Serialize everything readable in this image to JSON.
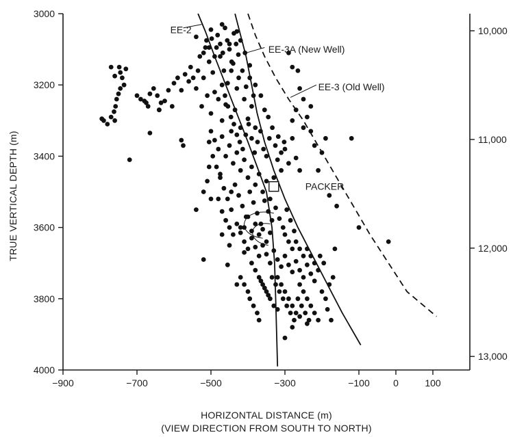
{
  "chart_data": {
    "type": "scatter",
    "title": "",
    "xlabel": "HORIZONTAL DISTANCE (m)",
    "xlabel_line2": "(VIEW DIRECTION FROM SOUTH TO NORTH)",
    "ylabel": "TRUE VERTICAL DEPTH (m)",
    "xlim": [
      -900,
      200
    ],
    "ylim": [
      3000,
      4000
    ],
    "x_ticks": [
      -900,
      -700,
      -500,
      -300,
      -100,
      0,
      100
    ],
    "x_tick_labels": [
      "−900",
      "−700",
      "−500",
      "−300",
      "−100",
      "0",
      "100"
    ],
    "y_ticks": [
      3000,
      3200,
      3400,
      3600,
      3800,
      4000
    ],
    "y_tick_labels": [
      "3000",
      "3200",
      "3400",
      "3600",
      "3800",
      "4000"
    ],
    "y2_ticks_m": [
      3048,
      3353,
      3658,
      3962
    ],
    "y2_tick_labels": [
      "10,000",
      "11,000",
      "12,000",
      "13,000"
    ],
    "grid": false,
    "wells": [
      {
        "name": "EE-2",
        "style": "solid",
        "x": [
          -535,
          -515,
          -490,
          -460,
          -430,
          -400,
          -375,
          -350,
          -335,
          -328,
          -325,
          -320
        ],
        "y": [
          3000,
          3050,
          3120,
          3200,
          3280,
          3360,
          3430,
          3500,
          3600,
          3700,
          3800,
          3990
        ]
      },
      {
        "name": "EE-3A (New Well)",
        "style": "solid",
        "x": [
          -435,
          -420,
          -405,
          -390,
          -375,
          -355,
          -330,
          -300,
          -265,
          -225,
          -185,
          -145,
          -95
        ],
        "y": [
          3000,
          3060,
          3120,
          3200,
          3280,
          3360,
          3440,
          3520,
          3600,
          3680,
          3760,
          3840,
          3930
        ]
      },
      {
        "name": "EE-3 (Old Well)",
        "style": "dashed",
        "x": [
          -400,
          -380,
          -355,
          -325,
          -290,
          -250,
          -205,
          -160,
          -115,
          -70,
          -20,
          30,
          110
        ],
        "y": [
          3000,
          3060,
          3120,
          3180,
          3240,
          3300,
          3380,
          3460,
          3540,
          3620,
          3700,
          3780,
          3850
        ]
      }
    ],
    "annotations": [
      {
        "text": "EE-2",
        "x": -610,
        "y": 3045
      },
      {
        "text": "EE-3A (New Well)",
        "x": -345,
        "y": 3100
      },
      {
        "text": "EE-3 (Old Well)",
        "x": -210,
        "y": 3205
      },
      {
        "text": "PACKER",
        "x": -245,
        "y": 3485
      }
    ],
    "packer": {
      "x": -330,
      "y": 3485
    },
    "points": [
      [
        -730,
        3155
      ],
      [
        -770,
        3150
      ],
      [
        -760,
        3175
      ],
      [
        -748,
        3150
      ],
      [
        -745,
        3165
      ],
      [
        -740,
        3180
      ],
      [
        -735,
        3200
      ],
      [
        -745,
        3210
      ],
      [
        -750,
        3225
      ],
      [
        -755,
        3240
      ],
      [
        -758,
        3260
      ],
      [
        -762,
        3275
      ],
      [
        -770,
        3290
      ],
      [
        -760,
        3300
      ],
      [
        -780,
        3310
      ],
      [
        -790,
        3300
      ],
      [
        -720,
        3410
      ],
      [
        -795,
        3295
      ],
      [
        -700,
        3230
      ],
      [
        -690,
        3240
      ],
      [
        -680,
        3245
      ],
      [
        -675,
        3250
      ],
      [
        -665,
        3225
      ],
      [
        -670,
        3260
      ],
      [
        -655,
        3210
      ],
      [
        -645,
        3230
      ],
      [
        -640,
        3270
      ],
      [
        -635,
        3250
      ],
      [
        -625,
        3245
      ],
      [
        -615,
        3215
      ],
      [
        -605,
        3260
      ],
      [
        -600,
        3195
      ],
      [
        -590,
        3180
      ],
      [
        -580,
        3215
      ],
      [
        -570,
        3170
      ],
      [
        -560,
        3190
      ],
      [
        -665,
        3335
      ],
      [
        -580,
        3355
      ],
      [
        -575,
        3370
      ],
      [
        -640,
        3270
      ],
      [
        -555,
        3150
      ],
      [
        -548,
        3180
      ],
      [
        -540,
        3210
      ],
      [
        -535,
        3160
      ],
      [
        -530,
        3120
      ],
      [
        -525,
        3260
      ],
      [
        -520,
        3180
      ],
      [
        -515,
        3095
      ],
      [
        -510,
        3230
      ],
      [
        -505,
        3135
      ],
      [
        -500,
        3280
      ],
      [
        -495,
        3165
      ],
      [
        -490,
        3220
      ],
      [
        -485,
        3095
      ],
      [
        -480,
        3240
      ],
      [
        -475,
        3120
      ],
      [
        -470,
        3300
      ],
      [
        -465,
        3160
      ],
      [
        -460,
        3255
      ],
      [
        -455,
        3195
      ],
      [
        -450,
        3085
      ],
      [
        -445,
        3330
      ],
      [
        -440,
        3140
      ],
      [
        -435,
        3270
      ],
      [
        -430,
        3210
      ],
      [
        -425,
        3180
      ],
      [
        -420,
        3320
      ],
      [
        -415,
        3160
      ],
      [
        -410,
        3240
      ],
      [
        -405,
        3205
      ],
      [
        -400,
        3295
      ],
      [
        -395,
        3180
      ],
      [
        -390,
        3260
      ],
      [
        -385,
        3230
      ],
      [
        -380,
        3320
      ],
      [
        -520,
        3110
      ],
      [
        -512,
        3075
      ],
      [
        -505,
        3095
      ],
      [
        -498,
        3070
      ],
      [
        -490,
        3120
      ],
      [
        -482,
        3060
      ],
      [
        -475,
        3085
      ],
      [
        -468,
        3110
      ],
      [
        -462,
        3040
      ],
      [
        -456,
        3075
      ],
      [
        -450,
        3100
      ],
      [
        -444,
        3135
      ],
      [
        -438,
        3055
      ],
      [
        -432,
        3085
      ],
      [
        -426,
        3115
      ],
      [
        -540,
        3065
      ],
      [
        -500,
        3045
      ],
      [
        -470,
        3030
      ],
      [
        -430,
        3050
      ],
      [
        -445,
        3160
      ],
      [
        -420,
        3075
      ],
      [
        -408,
        3110
      ],
      [
        -395,
        3145
      ],
      [
        -380,
        3200
      ],
      [
        -365,
        3230
      ],
      [
        -355,
        3270
      ],
      [
        -345,
        3290
      ],
      [
        -500,
        3330
      ],
      [
        -490,
        3355
      ],
      [
        -480,
        3380
      ],
      [
        -470,
        3345
      ],
      [
        -460,
        3400
      ],
      [
        -450,
        3370
      ],
      [
        -440,
        3420
      ],
      [
        -430,
        3390
      ],
      [
        -420,
        3440
      ],
      [
        -410,
        3410
      ],
      [
        -400,
        3460
      ],
      [
        -390,
        3430
      ],
      [
        -380,
        3480
      ],
      [
        -370,
        3450
      ],
      [
        -360,
        3500
      ],
      [
        -350,
        3470
      ],
      [
        -340,
        3520
      ],
      [
        -330,
        3460
      ],
      [
        -320,
        3410
      ],
      [
        -310,
        3440
      ],
      [
        -300,
        3380
      ],
      [
        -290,
        3420
      ],
      [
        -280,
        3350
      ],
      [
        -270,
        3405
      ],
      [
        -260,
        3440
      ],
      [
        -505,
        3360
      ],
      [
        -495,
        3400
      ],
      [
        -485,
        3430
      ],
      [
        -475,
        3460
      ],
      [
        -465,
        3490
      ],
      [
        -455,
        3520
      ],
      [
        -445,
        3550
      ],
      [
        -435,
        3480
      ],
      [
        -425,
        3510
      ],
      [
        -415,
        3540
      ],
      [
        -405,
        3570
      ],
      [
        -395,
        3500
      ],
      [
        -385,
        3530
      ],
      [
        -375,
        3560
      ],
      [
        -365,
        3590
      ],
      [
        -355,
        3525
      ],
      [
        -345,
        3555
      ],
      [
        -335,
        3580
      ],
      [
        -325,
        3545
      ],
      [
        -315,
        3575
      ],
      [
        -305,
        3600
      ],
      [
        -295,
        3550
      ],
      [
        -285,
        3580
      ],
      [
        -275,
        3610
      ],
      [
        -470,
        3200
      ],
      [
        -462,
        3230
      ],
      [
        -454,
        3260
      ],
      [
        -446,
        3290
      ],
      [
        -438,
        3310
      ],
      [
        -430,
        3340
      ],
      [
        -422,
        3360
      ],
      [
        -414,
        3380
      ],
      [
        -406,
        3340
      ],
      [
        -398,
        3310
      ],
      [
        -390,
        3350
      ],
      [
        -382,
        3390
      ],
      [
        -374,
        3360
      ],
      [
        -366,
        3330
      ],
      [
        -358,
        3380
      ],
      [
        -350,
        3400
      ],
      [
        -342,
        3350
      ],
      [
        -334,
        3320
      ],
      [
        -326,
        3370
      ],
      [
        -318,
        3345
      ],
      [
        -310,
        3390
      ],
      [
        -302,
        3360
      ],
      [
        -480,
        3520
      ],
      [
        -470,
        3555
      ],
      [
        -460,
        3580
      ],
      [
        -450,
        3600
      ],
      [
        -440,
        3620
      ],
      [
        -430,
        3590
      ],
      [
        -420,
        3615
      ],
      [
        -410,
        3640
      ],
      [
        -400,
        3660
      ],
      [
        -390,
        3630
      ],
      [
        -380,
        3655
      ],
      [
        -370,
        3680
      ],
      [
        -360,
        3650
      ],
      [
        -350,
        3675
      ],
      [
        -340,
        3700
      ],
      [
        -330,
        3665
      ],
      [
        -320,
        3690
      ],
      [
        -310,
        3710
      ],
      [
        -300,
        3680
      ],
      [
        -290,
        3705
      ],
      [
        -280,
        3725
      ],
      [
        -270,
        3695
      ],
      [
        -260,
        3720
      ],
      [
        -250,
        3740
      ],
      [
        -240,
        3705
      ],
      [
        -230,
        3730
      ],
      [
        -220,
        3750
      ],
      [
        -390,
        3700
      ],
      [
        -380,
        3720
      ],
      [
        -370,
        3740
      ],
      [
        -360,
        3760
      ],
      [
        -350,
        3780
      ],
      [
        -340,
        3800
      ],
      [
        -330,
        3820
      ],
      [
        -320,
        3740
      ],
      [
        -310,
        3760
      ],
      [
        -300,
        3780
      ],
      [
        -290,
        3800
      ],
      [
        -280,
        3820
      ],
      [
        -270,
        3840
      ],
      [
        -260,
        3760
      ],
      [
        -250,
        3780
      ],
      [
        -240,
        3800
      ],
      [
        -230,
        3820
      ],
      [
        -220,
        3840
      ],
      [
        -210,
        3860
      ],
      [
        -200,
        3780
      ],
      [
        -190,
        3800
      ],
      [
        -180,
        3760
      ],
      [
        -170,
        3740
      ],
      [
        -185,
        3830
      ],
      [
        -175,
        3860
      ],
      [
        -420,
        3740
      ],
      [
        -410,
        3760
      ],
      [
        -400,
        3780
      ],
      [
        -395,
        3800
      ],
      [
        -385,
        3820
      ],
      [
        -375,
        3840
      ],
      [
        -365,
        3750
      ],
      [
        -355,
        3770
      ],
      [
        -345,
        3790
      ],
      [
        -335,
        3740
      ],
      [
        -325,
        3760
      ],
      [
        -315,
        3780
      ],
      [
        -305,
        3800
      ],
      [
        -295,
        3820
      ],
      [
        -285,
        3840
      ],
      [
        -275,
        3860
      ],
      [
        -265,
        3800
      ],
      [
        -255,
        3820
      ],
      [
        -245,
        3840
      ],
      [
        -235,
        3860
      ],
      [
        -300,
        3620
      ],
      [
        -290,
        3640
      ],
      [
        -280,
        3660
      ],
      [
        -270,
        3640
      ],
      [
        -260,
        3660
      ],
      [
        -250,
        3680
      ],
      [
        -240,
        3660
      ],
      [
        -230,
        3680
      ],
      [
        -220,
        3700
      ],
      [
        -210,
        3720
      ],
      [
        -205,
        3680
      ],
      [
        -195,
        3700
      ],
      [
        -370,
        3860
      ],
      [
        -300,
        3910
      ],
      [
        -320,
        3830
      ],
      [
        -260,
        3850
      ],
      [
        -240,
        3870
      ],
      [
        -280,
        3880
      ],
      [
        -280,
        3150
      ],
      [
        -270,
        3270
      ],
      [
        -280,
        3300
      ],
      [
        -250,
        3320
      ],
      [
        -230,
        3260
      ],
      [
        -260,
        3210
      ],
      [
        -240,
        3290
      ],
      [
        -210,
        3440
      ],
      [
        -190,
        3350
      ],
      [
        -200,
        3390
      ],
      [
        -290,
        3110
      ],
      [
        -265,
        3160
      ],
      [
        -250,
        3240
      ],
      [
        -230,
        3330
      ],
      [
        -220,
        3370
      ],
      [
        -420,
        3600
      ],
      [
        -520,
        3690
      ],
      [
        -450,
        3650
      ],
      [
        -410,
        3670
      ],
      [
        -455,
        3705
      ],
      [
        -430,
        3760
      ],
      [
        -160,
        3540
      ],
      [
        -120,
        3350
      ],
      [
        -100,
        3600
      ],
      [
        -20,
        3640
      ],
      [
        -180,
        3510
      ],
      [
        -165,
        3660
      ],
      [
        -540,
        3550
      ],
      [
        -520,
        3500
      ],
      [
        -510,
        3470
      ],
      [
        -505,
        3430
      ],
      [
        -500,
        3520
      ],
      [
        -470,
        3620
      ],
      [
        -475,
        3450
      ],
      [
        -445,
        3500
      ],
      [
        -410,
        3600
      ],
      [
        -400,
        3570
      ],
      [
        -390,
        3610
      ],
      [
        -380,
        3590
      ],
      [
        -370,
        3620
      ],
      [
        -360,
        3605
      ],
      [
        -350,
        3640
      ],
      [
        -340,
        3615
      ]
    ]
  }
}
